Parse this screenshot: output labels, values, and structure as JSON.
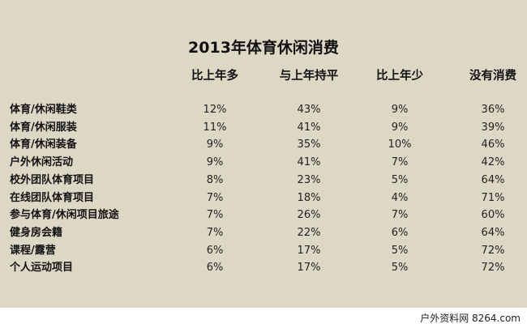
{
  "chart_data": {
    "type": "table",
    "title": "2013年体育休闲消费",
    "columns": [
      "比上年多",
      "与上年持平",
      "比上年少",
      "没有消费"
    ],
    "rows": [
      {
        "label": "体育/休闲鞋类",
        "values": [
          "12%",
          "43%",
          "9%",
          "36%"
        ]
      },
      {
        "label": "体育/休闲服装",
        "values": [
          "11%",
          "41%",
          "9%",
          "39%"
        ]
      },
      {
        "label": "体育/休闲装备",
        "values": [
          "9%",
          "35%",
          "10%",
          "46%"
        ]
      },
      {
        "label": "户外休闲活动",
        "values": [
          "9%",
          "41%",
          "7%",
          "42%"
        ]
      },
      {
        "label": "校外团队体育项目",
        "values": [
          "8%",
          "23%",
          "5%",
          "64%"
        ]
      },
      {
        "label": "在线团队体育项目",
        "values": [
          "7%",
          "18%",
          "4%",
          "71%"
        ]
      },
      {
        "label": "参与体育/休闲项目旅途",
        "values": [
          "7%",
          "26%",
          "7%",
          "60%"
        ]
      },
      {
        "label": "健身房会籍",
        "values": [
          "7%",
          "22%",
          "6%",
          "64%"
        ]
      },
      {
        "label": "课程/露营",
        "values": [
          "6%",
          "17%",
          "5%",
          "72%"
        ]
      },
      {
        "label": "个人运动项目",
        "values": [
          "6%",
          "17%",
          "5%",
          "72%"
        ]
      }
    ]
  },
  "footer": {
    "brand": "户外资料网 8264.com"
  },
  "colors": {
    "background": "#dcd8c5",
    "footer": "#ffffff",
    "text": "#1a1a1a"
  }
}
